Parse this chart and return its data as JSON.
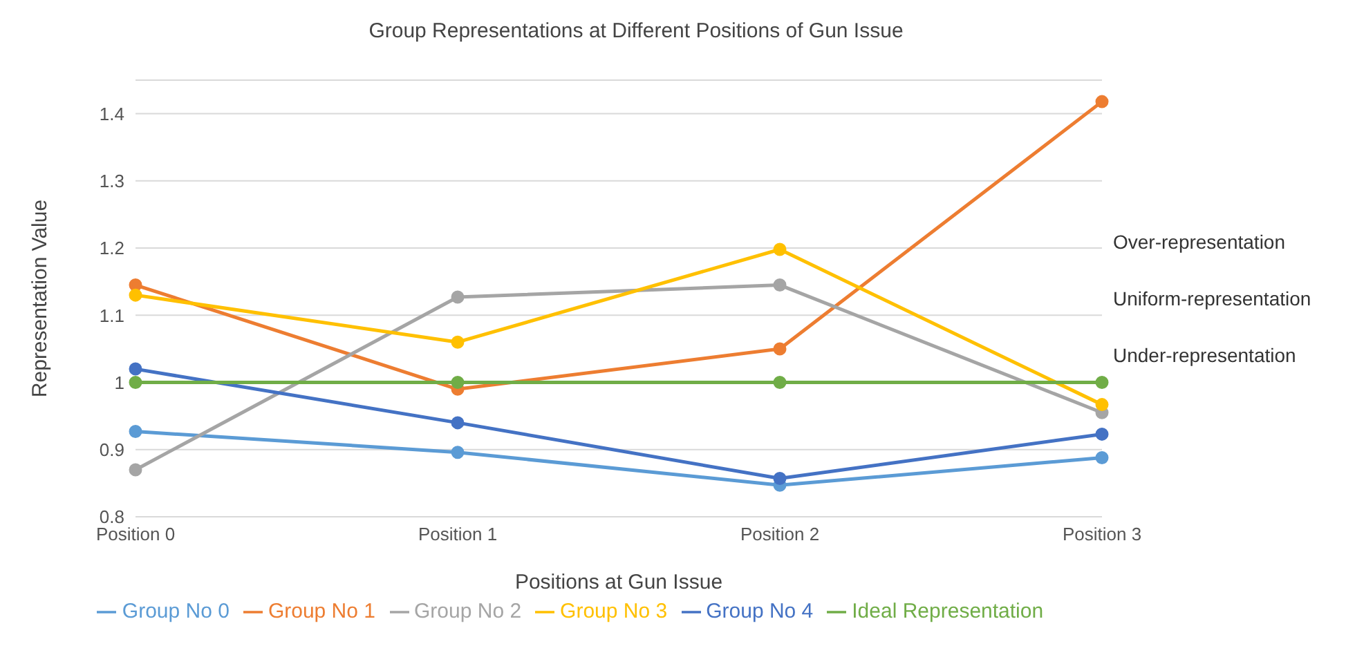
{
  "chart_data": {
    "type": "line",
    "title": "Group Representations at Different Positions of Gun Issue",
    "xlabel": "Positions at Gun Issue",
    "ylabel": "Representation Value",
    "categories": [
      "Position 0",
      "Position 1",
      "Position 2",
      "Position 3"
    ],
    "series": [
      {
        "name": "Group No 0",
        "color": "#5b9bd5",
        "values": [
          0.927,
          0.896,
          0.847,
          0.888
        ]
      },
      {
        "name": "Group No 1",
        "color": "#ed7d31",
        "values": [
          1.145,
          0.99,
          1.05,
          1.418
        ]
      },
      {
        "name": "Group No 2",
        "color": "#a5a5a5",
        "values": [
          0.87,
          1.127,
          1.145,
          0.955
        ]
      },
      {
        "name": "Group No 3",
        "color": "#ffc000",
        "values": [
          1.13,
          1.06,
          1.198,
          0.967
        ]
      },
      {
        "name": "Group No 4",
        "color": "#4472c4",
        "values": [
          1.02,
          0.94,
          0.857,
          0.923
        ]
      },
      {
        "name": "Ideal Representation",
        "color": "#70ad47",
        "values": [
          1,
          1,
          1,
          1
        ]
      }
    ],
    "ylim": [
      0.8,
      1.45
    ],
    "yticks": [
      0.8,
      0.9,
      {
        "value": 1,
        "label": "1"
      },
      1.1,
      1.2,
      1.3,
      1.4
    ],
    "grid": "y",
    "legend": "bottom",
    "marker": "circle",
    "line_style": "solid",
    "annotations": [
      "Over-representation",
      "Uniform-representation",
      "Under-representation"
    ]
  }
}
